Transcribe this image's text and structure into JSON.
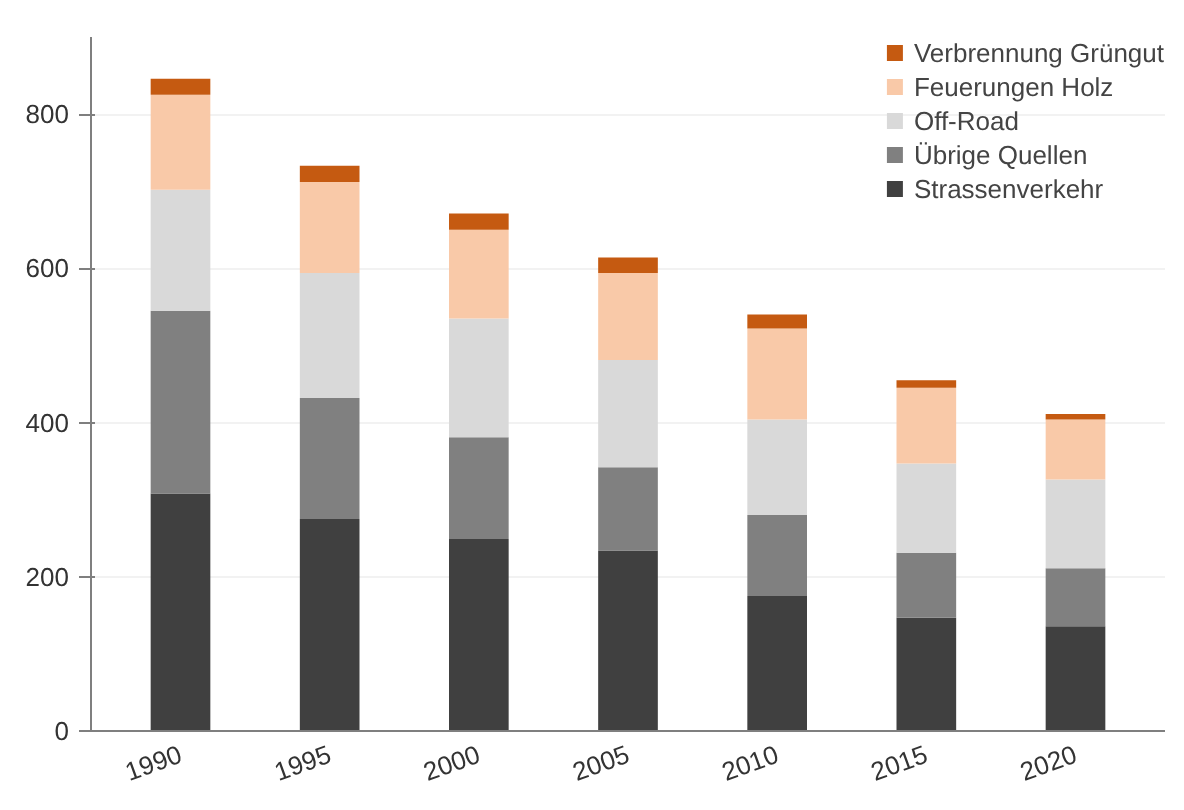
{
  "chart_data": {
    "type": "bar",
    "stacked": true,
    "categories": [
      "1990",
      "1995",
      "2000",
      "2005",
      "2010",
      "2015",
      "2020"
    ],
    "series": [
      {
        "name": "Strassenverkehr",
        "color": "#404040",
        "values": [
          308,
          275,
          249,
          234,
          175,
          147,
          136
        ]
      },
      {
        "name": "Übrige Quellen",
        "color": "#808080",
        "values": [
          237,
          157,
          132,
          108,
          105,
          84,
          75
        ]
      },
      {
        "name": "Off-Road",
        "color": "#d9d9d9",
        "values": [
          157,
          162,
          154,
          139,
          124,
          116,
          115
        ]
      },
      {
        "name": "Feuerungen Holz",
        "color": "#f9c9a8",
        "values": [
          123,
          118,
          115,
          113,
          118,
          98,
          78
        ]
      },
      {
        "name": "Verbrennung Grüngut",
        "color": "#c55a11",
        "values": [
          21,
          21,
          21,
          20,
          18,
          10,
          7
        ]
      }
    ],
    "ylim": [
      0,
      900
    ],
    "yticks": [
      0,
      200,
      400,
      600,
      800
    ],
    "grid": "y",
    "legend": "top right"
  }
}
